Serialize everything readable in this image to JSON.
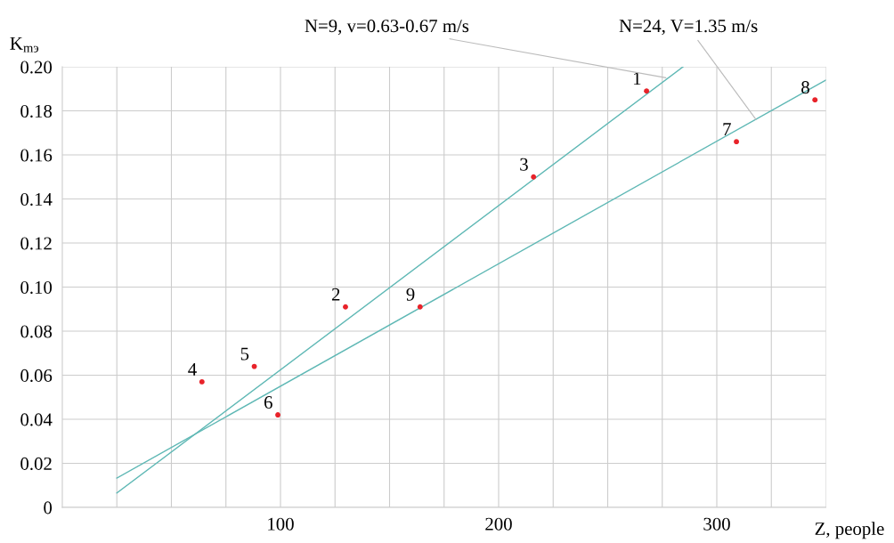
{
  "chart_data": {
    "type": "scatter",
    "xlabel": "Z, people",
    "ylabel": "K$_{mэ}$",
    "xlim": [
      0,
      350
    ],
    "ylim": [
      0,
      0.2
    ],
    "xticks": [
      {
        "value": 25,
        "label": null
      },
      {
        "value": 50,
        "label": null
      },
      {
        "value": 75,
        "label": null
      },
      100,
      {
        "value": 125,
        "label": null
      },
      {
        "value": 150,
        "label": null
      },
      {
        "value": 175,
        "label": null
      },
      200,
      {
        "value": 225,
        "label": null
      },
      {
        "value": 250,
        "label": null
      },
      {
        "value": 275,
        "label": null
      },
      300,
      {
        "value": 325,
        "label": null
      },
      {
        "value": 350,
        "label": null
      }
    ],
    "yticks": [
      0,
      {
        "value": 0.02,
        "label": "0.02"
      },
      {
        "value": 0.04,
        "label": "0.04"
      },
      {
        "value": 0.06,
        "label": "0.06"
      },
      {
        "value": 0.08,
        "label": "0.08"
      },
      {
        "value": 0.1,
        "label": "0.10"
      },
      {
        "value": 0.12,
        "label": "0.12"
      },
      {
        "value": 0.14,
        "label": "0.14"
      },
      {
        "value": 0.16,
        "label": "0.16"
      },
      {
        "value": 0.18,
        "label": "0.18"
      },
      {
        "value": 0.2,
        "label": "0.20"
      }
    ],
    "grid": true,
    "series": [
      {
        "marker": "circle",
        "color": "#e8232a",
        "x": [
          267.8,
          129.8,
          216,
          64,
          88,
          98.8,
          309,
          345,
          164
        ],
        "values": [
          0.189,
          0.091,
          0.15,
          0.057,
          0.064,
          0.042,
          0.166,
          0.185,
          0.091
        ]
      },
      {
        "type": "line",
        "color": "#5fb8b5",
        "x": [
          25,
          284.5
        ],
        "values": [
          0.0065,
          0.2
        ]
      },
      {
        "type": "line",
        "color": "#5fb8b5",
        "x": [
          25,
          350
        ],
        "values": [
          0.0133,
          0.194
        ]
      }
    ],
    "annotations": [
      {
        "text": "1",
        "x": 267.8,
        "y": 0.189
      },
      {
        "text": "2",
        "x": 129.8,
        "y": 0.091
      },
      {
        "text": "3",
        "x": 216,
        "y": 0.15
      },
      {
        "text": "4",
        "x": 64,
        "y": 0.057
      },
      {
        "text": "5",
        "x": 88,
        "y": 0.064
      },
      {
        "text": "6",
        "x": 98.8,
        "y": 0.042
      },
      {
        "text": "7",
        "x": 309,
        "y": 0.166
      },
      {
        "text": "8",
        "x": 345,
        "y": 0.185
      },
      {
        "text": "9",
        "x": 164,
        "y": 0.091
      },
      {
        "text": "N=9, v=0.63-0.67 m/s",
        "x": 276.7,
        "y": 0.195
      },
      {
        "text": "N=24, V=1.35 m/s",
        "x": 318,
        "y": 0.176
      }
    ]
  }
}
